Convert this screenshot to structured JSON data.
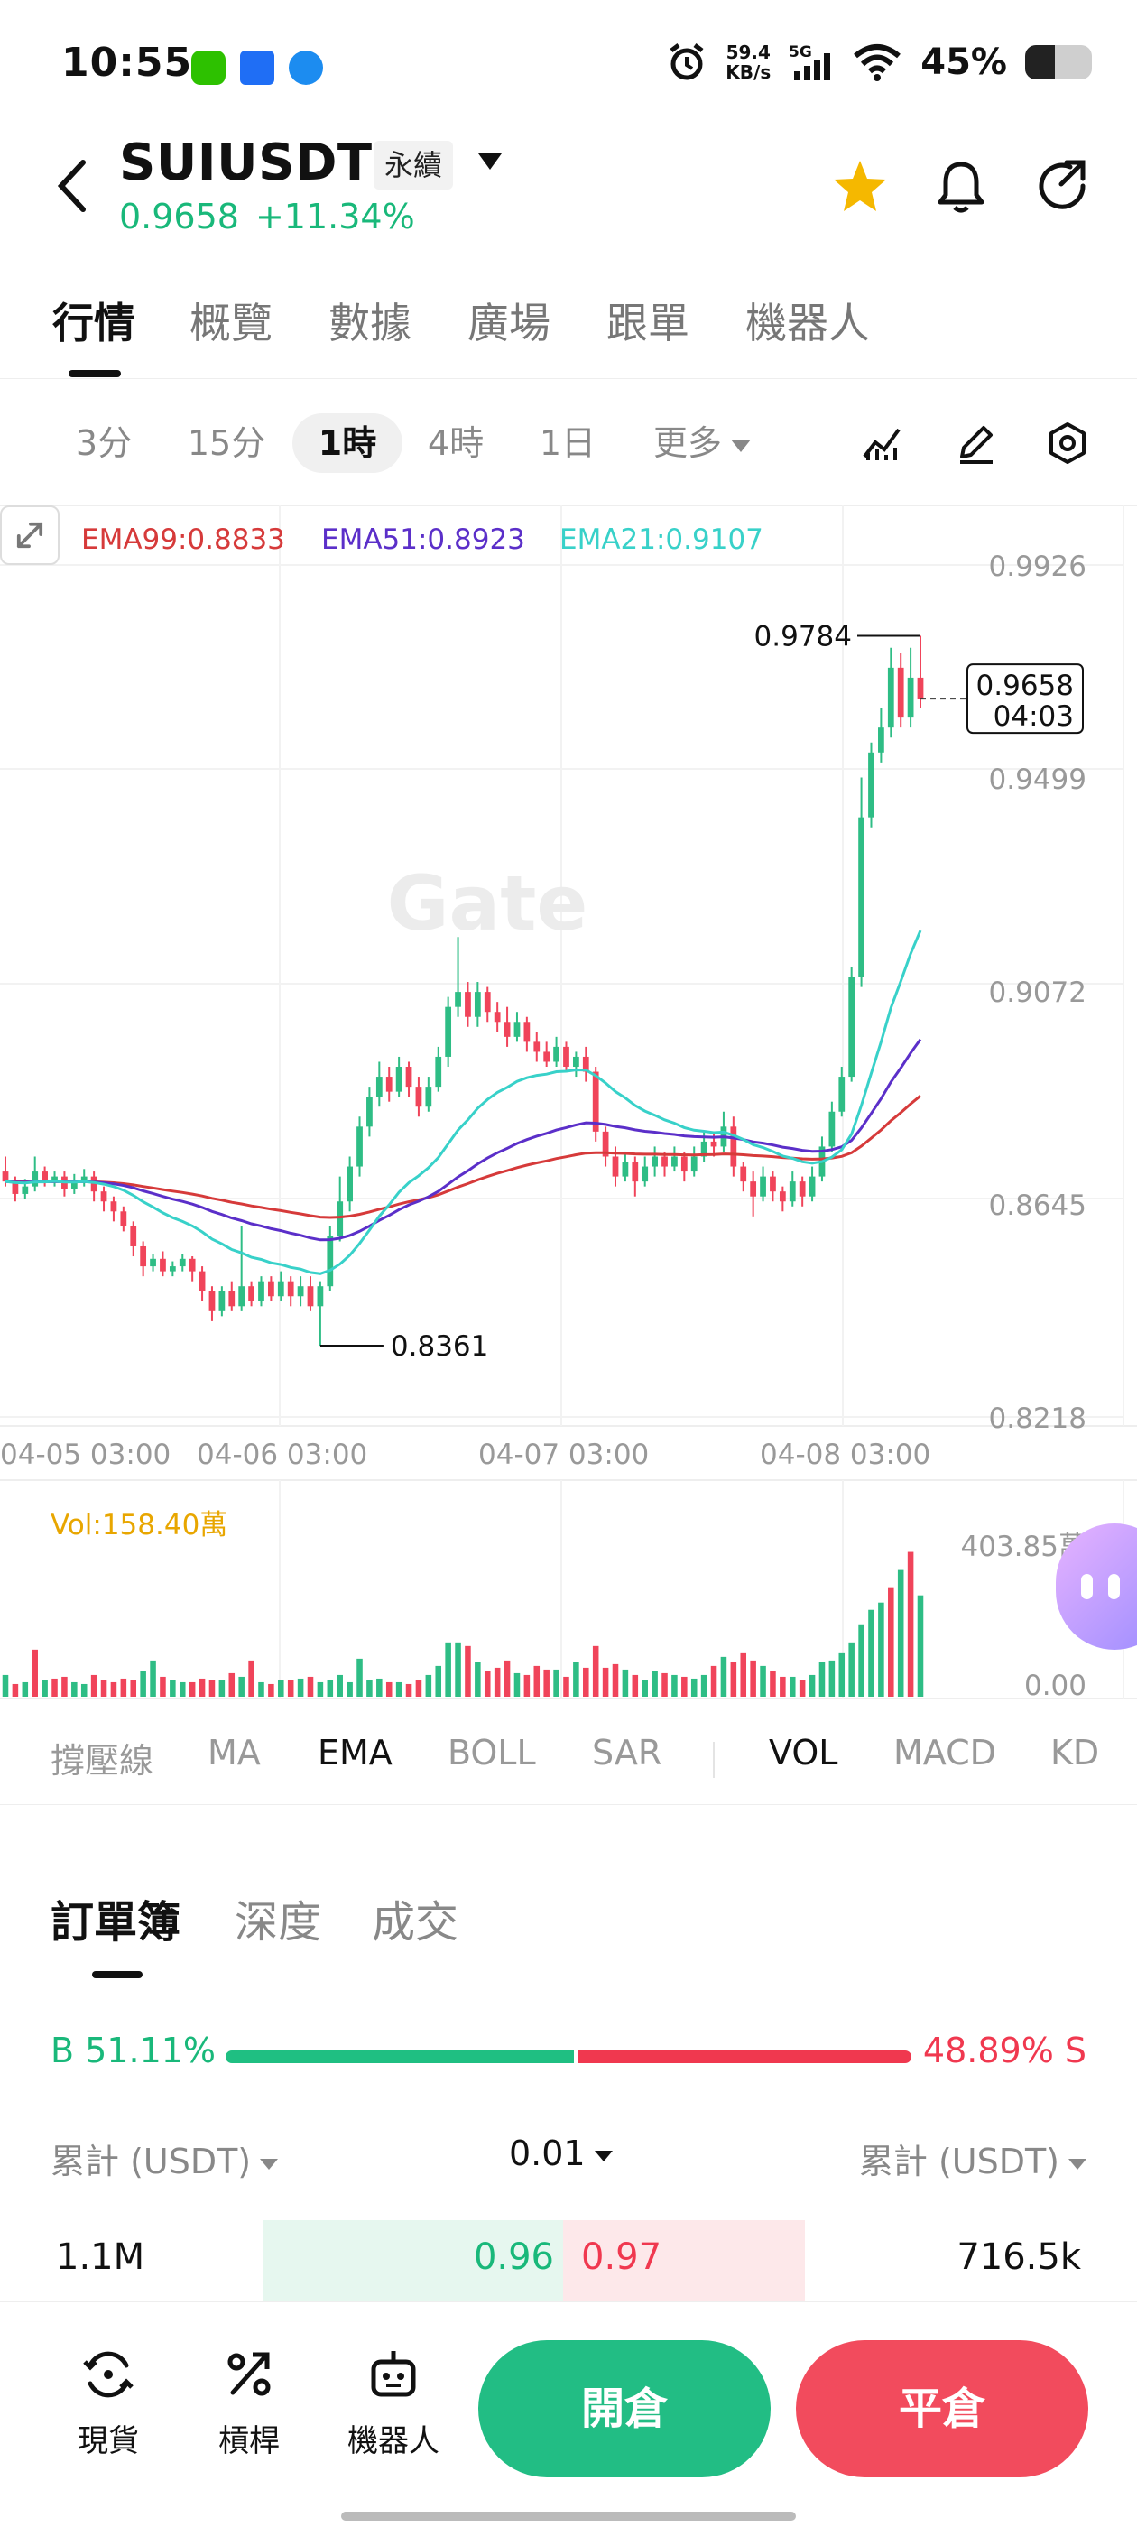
{
  "status_bar": {
    "time": "10:55",
    "net_speed_value": "59.4",
    "net_speed_unit": "KB/s",
    "signal_label": "5G",
    "battery_pct": "45%",
    "battery_level": 0.45
  },
  "header": {
    "pair": "SUIUSDT",
    "contract_type": "永續",
    "last_price": "0.9658",
    "change": "+11.34%",
    "favorited": true
  },
  "tabs": [
    "行情",
    "概覽",
    "數據",
    "廣場",
    "跟單",
    "機器人"
  ],
  "active_tab": 0,
  "intervals": [
    "3分",
    "15分",
    "1時",
    "4時",
    "1日",
    "更多"
  ],
  "active_interval": 2,
  "chart_data": {
    "type": "candlestick",
    "watermark": "Gate",
    "ema_legend": [
      {
        "label": "EMA99:0.8833",
        "color": "#d63a3a"
      },
      {
        "label": "EMA51:0.8923",
        "color": "#5b2fc9"
      },
      {
        "label": "EMA21:0.9107",
        "color": "#38d1c9"
      }
    ],
    "y_ticks": [
      "0.9926",
      "0.9499",
      "0.9072",
      "0.8645",
      "0.8218"
    ],
    "ylim": [
      0.8218,
      0.9926
    ],
    "x_ticks": [
      "04-05 03:00",
      "04-06 03:00",
      "04-07 03:00",
      "04-08 03:00"
    ],
    "high_label": "0.9784",
    "low_label": "0.8361",
    "current_price": "0.9658",
    "countdown": "04:03",
    "up_color": "#2ebd85",
    "down_color": "#f0445a",
    "candles": [
      [
        0.871,
        0.869,
        0.874,
        0.868
      ],
      [
        0.869,
        0.8665,
        0.87,
        0.865
      ],
      [
        0.8665,
        0.868,
        0.8695,
        0.8655
      ],
      [
        0.868,
        0.871,
        0.874,
        0.867
      ],
      [
        0.871,
        0.869,
        0.872,
        0.868
      ],
      [
        0.869,
        0.87,
        0.871,
        0.868
      ],
      [
        0.87,
        0.8675,
        0.871,
        0.866
      ],
      [
        0.8675,
        0.869,
        0.8705,
        0.8665
      ],
      [
        0.869,
        0.87,
        0.8715,
        0.868
      ],
      [
        0.87,
        0.867,
        0.871,
        0.865
      ],
      [
        0.867,
        0.865,
        0.868,
        0.863
      ],
      [
        0.865,
        0.863,
        0.866,
        0.861
      ],
      [
        0.863,
        0.86,
        0.864,
        0.859
      ],
      [
        0.86,
        0.856,
        0.861,
        0.854
      ],
      [
        0.856,
        0.852,
        0.857,
        0.85
      ],
      [
        0.852,
        0.8535,
        0.8545,
        0.851
      ],
      [
        0.8535,
        0.851,
        0.855,
        0.85
      ],
      [
        0.851,
        0.852,
        0.853,
        0.85
      ],
      [
        0.852,
        0.8535,
        0.8545,
        0.851
      ],
      [
        0.8535,
        0.851,
        0.854,
        0.849
      ],
      [
        0.851,
        0.847,
        0.852,
        0.845
      ],
      [
        0.847,
        0.843,
        0.848,
        0.841
      ],
      [
        0.843,
        0.847,
        0.848,
        0.842
      ],
      [
        0.847,
        0.844,
        0.849,
        0.843
      ],
      [
        0.844,
        0.848,
        0.86,
        0.843
      ],
      [
        0.848,
        0.845,
        0.849,
        0.844
      ],
      [
        0.845,
        0.849,
        0.85,
        0.844
      ],
      [
        0.849,
        0.846,
        0.85,
        0.845
      ],
      [
        0.846,
        0.849,
        0.851,
        0.845
      ],
      [
        0.849,
        0.846,
        0.85,
        0.844
      ],
      [
        0.846,
        0.848,
        0.85,
        0.844
      ],
      [
        0.848,
        0.844,
        0.85,
        0.843
      ],
      [
        0.844,
        0.848,
        0.849,
        0.8361
      ],
      [
        0.848,
        0.858,
        0.86,
        0.847
      ],
      [
        0.858,
        0.865,
        0.87,
        0.857
      ],
      [
        0.865,
        0.872,
        0.874,
        0.863
      ],
      [
        0.872,
        0.88,
        0.882,
        0.87
      ],
      [
        0.88,
        0.886,
        0.888,
        0.878
      ],
      [
        0.886,
        0.89,
        0.893,
        0.884
      ],
      [
        0.89,
        0.887,
        0.892,
        0.885
      ],
      [
        0.887,
        0.892,
        0.894,
        0.886
      ],
      [
        0.892,
        0.888,
        0.893,
        0.886
      ],
      [
        0.888,
        0.884,
        0.89,
        0.882
      ],
      [
        0.884,
        0.888,
        0.89,
        0.883
      ],
      [
        0.888,
        0.894,
        0.896,
        0.887
      ],
      [
        0.894,
        0.904,
        0.906,
        0.892
      ],
      [
        0.904,
        0.907,
        0.918,
        0.902
      ],
      [
        0.907,
        0.902,
        0.909,
        0.9
      ],
      [
        0.902,
        0.907,
        0.909,
        0.9
      ],
      [
        0.907,
        0.903,
        0.908,
        0.901
      ],
      [
        0.903,
        0.901,
        0.905,
        0.899
      ],
      [
        0.901,
        0.898,
        0.904,
        0.896
      ],
      [
        0.898,
        0.901,
        0.903,
        0.897
      ],
      [
        0.901,
        0.897,
        0.902,
        0.895
      ],
      [
        0.897,
        0.895,
        0.899,
        0.893
      ],
      [
        0.895,
        0.893,
        0.897,
        0.892
      ],
      [
        0.893,
        0.896,
        0.898,
        0.892
      ],
      [
        0.896,
        0.892,
        0.897,
        0.891
      ],
      [
        0.892,
        0.894,
        0.895,
        0.89
      ],
      [
        0.894,
        0.891,
        0.896,
        0.889
      ],
      [
        0.891,
        0.879,
        0.892,
        0.877
      ],
      [
        0.879,
        0.874,
        0.88,
        0.872
      ],
      [
        0.874,
        0.87,
        0.876,
        0.868
      ],
      [
        0.87,
        0.873,
        0.875,
        0.869
      ],
      [
        0.873,
        0.869,
        0.874,
        0.866
      ],
      [
        0.869,
        0.872,
        0.874,
        0.868
      ],
      [
        0.872,
        0.874,
        0.876,
        0.87
      ],
      [
        0.874,
        0.872,
        0.875,
        0.87
      ],
      [
        0.872,
        0.874,
        0.876,
        0.871
      ],
      [
        0.874,
        0.871,
        0.875,
        0.869
      ],
      [
        0.871,
        0.874,
        0.876,
        0.87
      ],
      [
        0.874,
        0.877,
        0.879,
        0.873
      ],
      [
        0.877,
        0.876,
        0.879,
        0.874
      ],
      [
        0.876,
        0.88,
        0.883,
        0.875
      ],
      [
        0.88,
        0.872,
        0.882,
        0.87
      ],
      [
        0.872,
        0.869,
        0.873,
        0.867
      ],
      [
        0.869,
        0.866,
        0.871,
        0.862
      ],
      [
        0.866,
        0.87,
        0.872,
        0.865
      ],
      [
        0.87,
        0.867,
        0.871,
        0.865
      ],
      [
        0.867,
        0.865,
        0.868,
        0.863
      ],
      [
        0.865,
        0.869,
        0.871,
        0.864
      ],
      [
        0.869,
        0.866,
        0.87,
        0.864
      ],
      [
        0.866,
        0.87,
        0.872,
        0.865
      ],
      [
        0.87,
        0.876,
        0.878,
        0.869
      ],
      [
        0.876,
        0.883,
        0.885,
        0.875
      ],
      [
        0.883,
        0.89,
        0.892,
        0.882
      ],
      [
        0.89,
        0.91,
        0.912,
        0.889
      ],
      [
        0.91,
        0.942,
        0.95,
        0.908
      ],
      [
        0.942,
        0.955,
        0.957,
        0.94
      ],
      [
        0.955,
        0.96,
        0.964,
        0.953
      ],
      [
        0.96,
        0.972,
        0.976,
        0.958
      ],
      [
        0.972,
        0.962,
        0.975,
        0.96
      ],
      [
        0.962,
        0.97,
        0.976,
        0.96
      ],
      [
        0.97,
        0.9658,
        0.9784,
        0.964
      ]
    ]
  },
  "volume": {
    "label": "Vol:158.40萬",
    "max_tick": "403.85萬",
    "min_tick": "0.00",
    "max_value_wan": 403.85,
    "bars_wan": [
      60,
      35,
      40,
      130,
      45,
      50,
      55,
      40,
      35,
      60,
      45,
      40,
      50,
      45,
      70,
      100,
      55,
      45,
      40,
      40,
      50,
      45,
      45,
      65,
      55,
      100,
      40,
      35,
      45,
      45,
      50,
      55,
      40,
      45,
      60,
      40,
      105,
      45,
      50,
      40,
      40,
      35,
      45,
      60,
      85,
      150,
      150,
      140,
      95,
      70,
      80,
      100,
      65,
      60,
      85,
      75,
      75,
      55,
      95,
      80,
      140,
      80,
      90,
      75,
      60,
      45,
      70,
      65,
      60,
      55,
      50,
      60,
      85,
      110,
      95,
      120,
      100,
      85,
      70,
      55,
      55,
      45,
      60,
      95,
      100,
      120,
      150,
      200,
      240,
      260,
      300,
      350,
      400,
      280
    ],
    "bar_dirs": [
      1,
      0,
      1,
      0,
      1,
      0,
      0,
      1,
      1,
      0,
      0,
      0,
      0,
      0,
      1,
      1,
      0,
      1,
      1,
      0,
      0,
      0,
      1,
      0,
      1,
      0,
      1,
      0,
      1,
      0,
      1,
      0,
      1,
      1,
      1,
      1,
      1,
      1,
      1,
      0,
      1,
      0,
      0,
      1,
      1,
      1,
      1,
      0,
      1,
      0,
      0,
      0,
      1,
      0,
      0,
      0,
      1,
      0,
      1,
      0,
      0,
      0,
      0,
      1,
      0,
      1,
      1,
      0,
      1,
      0,
      1,
      1,
      0,
      1,
      0,
      0,
      0,
      1,
      0,
      0,
      1,
      0,
      1,
      1,
      1,
      1,
      1,
      1,
      1,
      1,
      0,
      1,
      0,
      1
    ]
  },
  "indicators": [
    "撐壓線",
    "MA",
    "EMA",
    "BOLL",
    "SAR",
    "VOL",
    "MACD",
    "KD"
  ],
  "active_indicators": [
    2,
    5
  ],
  "orderbook": {
    "tabs": [
      "訂單簿",
      "深度",
      "成交"
    ],
    "active_tab": 0,
    "buy_ratio_label": "B 51.11%",
    "sell_ratio_label": "48.89% S",
    "buy_ratio": 0.5111,
    "left_header": "累計 (USDT)",
    "precision": "0.01",
    "right_header": "累計 (USDT)",
    "rows": [
      {
        "bid_total": "1.1M",
        "bid_price": "0.96",
        "ask_price": "0.97",
        "ask_total": "716.5k"
      }
    ]
  },
  "bottom_bar": {
    "items": [
      "現貨",
      "槓桿",
      "機器人"
    ],
    "open_label": "開倉",
    "close_label": "平倉"
  }
}
